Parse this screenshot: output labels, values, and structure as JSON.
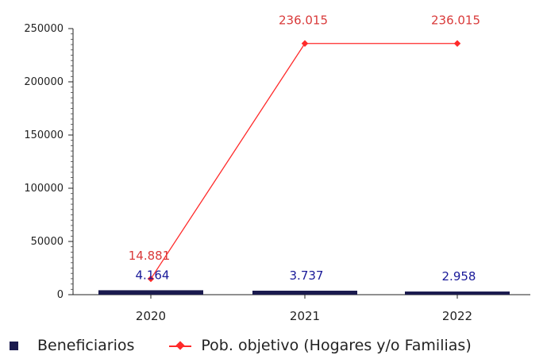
{
  "chart_data": {
    "type": "bar+line",
    "categories": [
      "2020",
      "2021",
      "2022"
    ],
    "series": [
      {
        "name": "Beneficiarios",
        "type": "bar",
        "values": [
          4164,
          3737,
          2958
        ],
        "labels": [
          "4.164",
          "3.737",
          "2.958"
        ],
        "color": "#1a1a4e",
        "label_color": "#1a1a99"
      },
      {
        "name": "Pob. objetivo (Hogares y/o Familias)",
        "type": "line",
        "values": [
          14881,
          236015,
          236015
        ],
        "labels": [
          "14.881",
          "236.015",
          "236.015"
        ],
        "color": "#ff2a2a",
        "label_color": "#d93a3a"
      }
    ],
    "ylim": [
      0,
      250000
    ],
    "yticks": [
      0,
      50000,
      100000,
      150000,
      200000,
      250000
    ],
    "ytick_labels": [
      "0",
      "50000",
      "100000",
      "150000",
      "200000",
      "250000"
    ],
    "legend_position": "bottom",
    "grid": false
  }
}
